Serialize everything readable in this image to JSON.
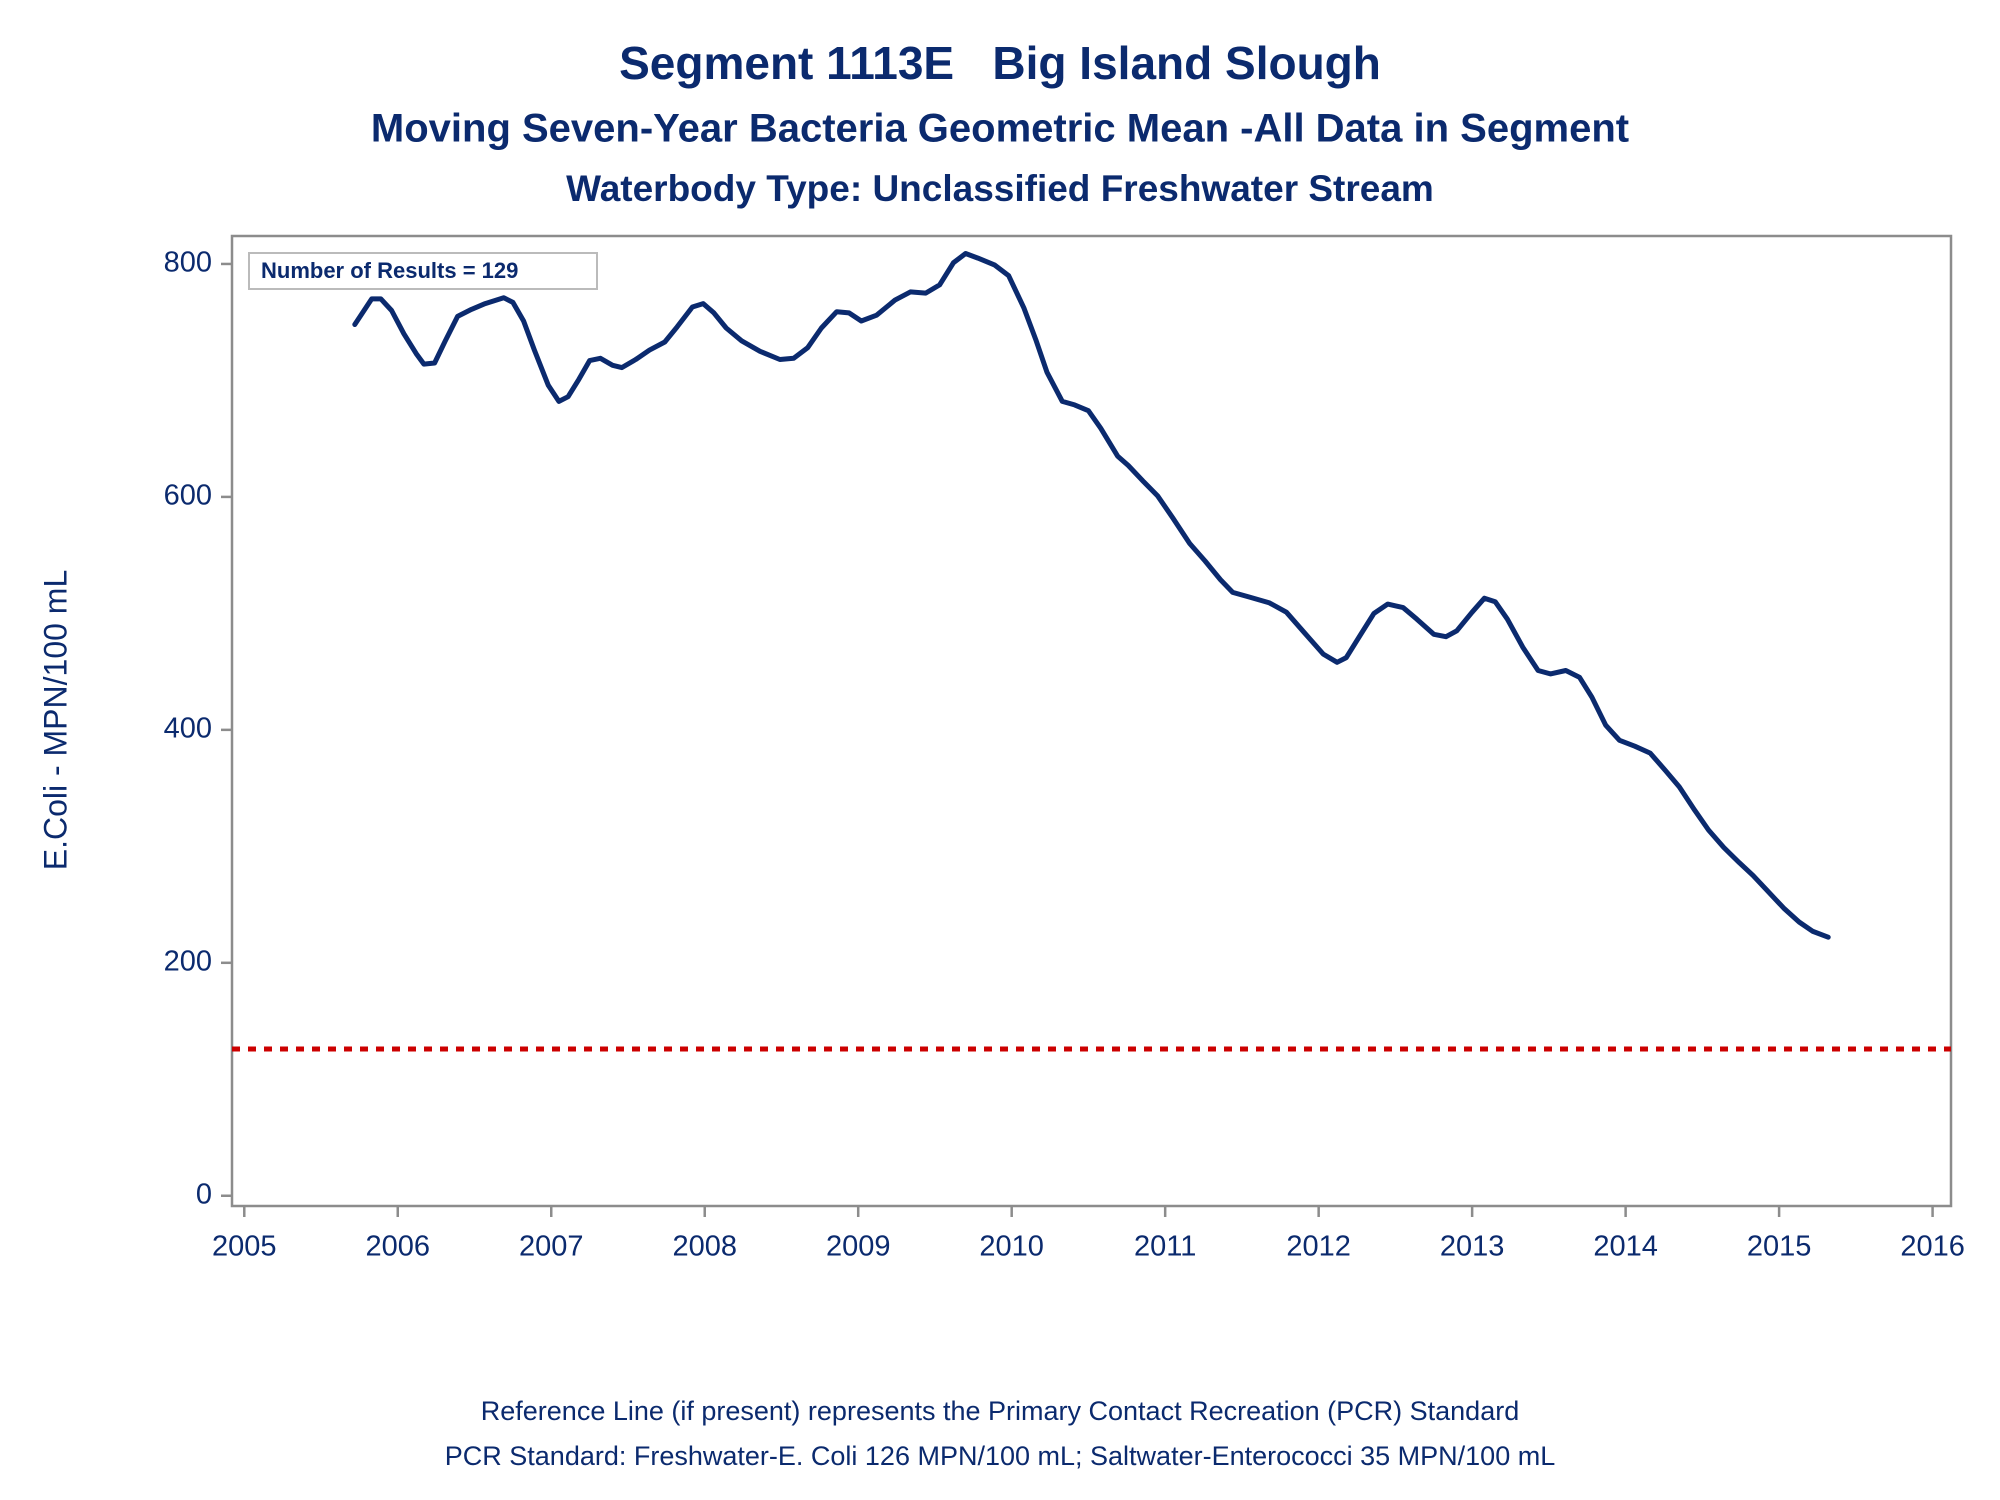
{
  "chart_data": {
    "type": "line",
    "title": "Segment 1113E   Big Island Slough",
    "subtitle": "Moving Seven-Year Bacteria Geometric Mean -All Data in Segment",
    "subtitle2": "Waterbody Type: Unclassified Freshwater Stream",
    "y_label": "E.Coli - MPN/100 mL",
    "annotation": "Number of Results = 129",
    "footnotes": [
      "Reference Line (if present) represents the Primary Contact Recreation (PCR) Standard",
      "PCR Standard: Freshwater-E. Coli 126 MPN/100 mL; Saltwater-Enterococci 35 MPN/100 mL"
    ],
    "color": "#0b2a6e",
    "reference_line": {
      "value": 126,
      "color": "#cc0000"
    },
    "x": [
      2005.72,
      2005.83,
      2005.89,
      2005.96,
      2006.04,
      2006.12,
      2006.17,
      2006.24,
      2006.31,
      2006.39,
      2006.48,
      2006.57,
      2006.69,
      2006.75,
      2006.82,
      2006.89,
      2006.98,
      2007.05,
      2007.11,
      2007.18,
      2007.25,
      2007.32,
      2007.4,
      2007.46,
      2007.55,
      2007.64,
      2007.74,
      2007.82,
      2007.92,
      2007.99,
      2008.06,
      2008.14,
      2008.24,
      2008.36,
      2008.49,
      2008.58,
      2008.67,
      2008.76,
      2008.86,
      2008.94,
      2009.02,
      2009.12,
      2009.24,
      2009.34,
      2009.44,
      2009.53,
      2009.62,
      2009.7,
      2009.78,
      2009.89,
      2009.98,
      2010.08,
      2010.16,
      2010.23,
      2010.33,
      2010.41,
      2010.5,
      2010.58,
      2010.69,
      2010.76,
      2010.86,
      2010.95,
      2011.05,
      2011.16,
      2011.26,
      2011.36,
      2011.44,
      2011.55,
      2011.68,
      2011.79,
      2011.91,
      2012.03,
      2012.12,
      2012.18,
      2012.26,
      2012.36,
      2012.45,
      2012.55,
      2012.64,
      2012.75,
      2012.83,
      2012.9,
      2013.0,
      2013.08,
      2013.15,
      2013.23,
      2013.33,
      2013.43,
      2013.51,
      2013.61,
      2013.7,
      2013.78,
      2013.87,
      2013.96,
      2014.06,
      2014.16,
      2014.26,
      2014.35,
      2014.45,
      2014.54,
      2014.64,
      2014.74,
      2014.83,
      2014.93,
      2015.03,
      2015.13,
      2015.22,
      2015.32
    ],
    "values": [
      748,
      770,
      770,
      760,
      740,
      723,
      714,
      715,
      734,
      755,
      761,
      766,
      771,
      767,
      751,
      726,
      696,
      682,
      686,
      701,
      717,
      719,
      713,
      711,
      718,
      726,
      733,
      746,
      763,
      766,
      758,
      745,
      734,
      725,
      718,
      719,
      728,
      745,
      759,
      758,
      751,
      756,
      769,
      776,
      775,
      782,
      801,
      809,
      805,
      799,
      790,
      762,
      734,
      707,
      682,
      679,
      674,
      659,
      635,
      627,
      613,
      601,
      582,
      560,
      545,
      529,
      518,
      514,
      509,
      501,
      483,
      465,
      458,
      462,
      479,
      500,
      508,
      505,
      495,
      482,
      480,
      485,
      501,
      513,
      510,
      495,
      471,
      451,
      448,
      451,
      445,
      428,
      404,
      391,
      386,
      380,
      365,
      351,
      331,
      314,
      299,
      286,
      275,
      261,
      247,
      235,
      227,
      222
    ],
    "xlim": [
      2004.92,
      2016.12
    ],
    "ylim": [
      -8.8,
      824
    ],
    "xticks": [
      2005,
      2006,
      2007,
      2008,
      2009,
      2010,
      2011,
      2012,
      2013,
      2014,
      2015,
      2016
    ],
    "yticks": [
      0,
      200,
      400,
      600,
      800
    ]
  }
}
